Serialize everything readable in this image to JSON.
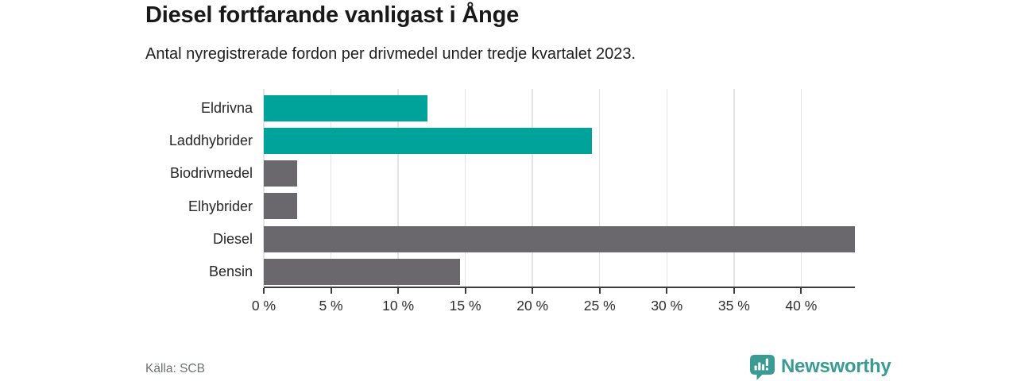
{
  "title": "Diesel fortfarande vanligast i Ånge",
  "subtitle": "Antal nyregistrerade fordon per drivmedel under tredje kvartalet 2023.",
  "source": "Källa: SCB",
  "brand": {
    "name": "Newsworthy",
    "icon": "newsworthy-chart-bubble-icon",
    "color": "#3a9b95"
  },
  "colors": {
    "highlight_bar": "#00a399",
    "default_bar": "#6b686d",
    "gridline": "#e3e3e3",
    "axis": "#3d3d3d"
  },
  "chart_data": {
    "type": "bar",
    "orientation": "horizontal",
    "title": "Diesel fortfarande vanligast i Ånge",
    "subtitle": "Antal nyregistrerade fordon per drivmedel under tredje kvartalet 2023.",
    "categories": [
      "Eldrivna",
      "Laddhybrider",
      "Biodrivmedel",
      "Elhybrider",
      "Diesel",
      "Bensin"
    ],
    "values": [
      12.2,
      24.4,
      2.5,
      2.5,
      44.0,
      14.6
    ],
    "bar_colors": [
      "#00a399",
      "#00a399",
      "#6b686d",
      "#6b686d",
      "#6b686d",
      "#6b686d"
    ],
    "unit": "%",
    "xlabel": "",
    "ylabel": "",
    "xlim": [
      0,
      44
    ],
    "x_tick_values": [
      0,
      5,
      10,
      15,
      20,
      25,
      30,
      35,
      40
    ],
    "x_tick_labels": [
      "0 %",
      "5 %",
      "10 %",
      "15 %",
      "20 %",
      "25 %",
      "30 %",
      "35 %",
      "40 %"
    ],
    "grid": true,
    "legend": false
  }
}
